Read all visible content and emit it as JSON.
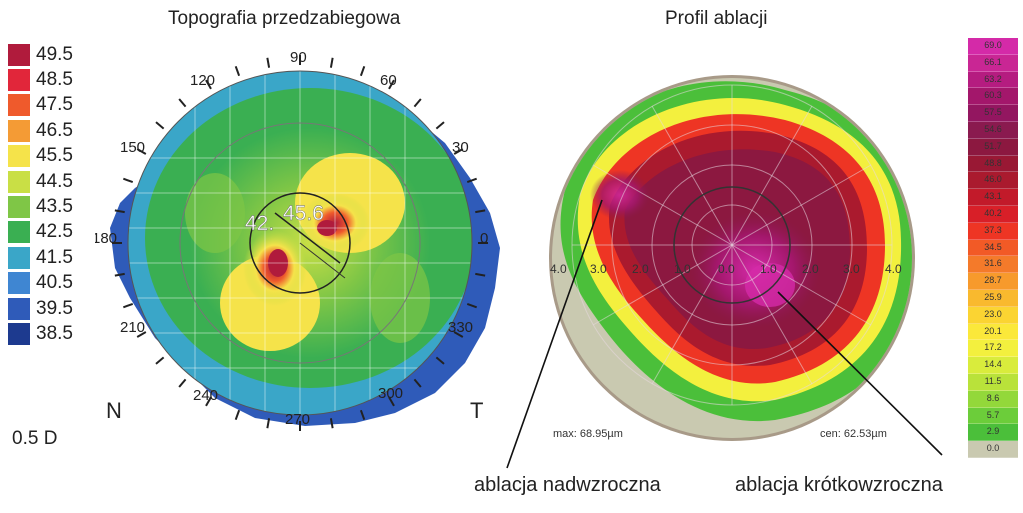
{
  "left": {
    "title": "Topografia przedzabiegowa",
    "scale": [
      {
        "label": "49.5",
        "color": "#b01b3c"
      },
      {
        "label": "48.5",
        "color": "#e1263a"
      },
      {
        "label": "47.5",
        "color": "#ef5a2c"
      },
      {
        "label": "46.5",
        "color": "#f49b35"
      },
      {
        "label": "45.5",
        "color": "#f5e34a"
      },
      {
        "label": "44.5",
        "color": "#c9df45"
      },
      {
        "label": "43.5",
        "color": "#7fc646"
      },
      {
        "label": "42.5",
        "color": "#3aaf52"
      },
      {
        "label": "41.5",
        "color": "#3aa6c8"
      },
      {
        "label": "40.5",
        "color": "#3f86d2"
      },
      {
        "label": "39.5",
        "color": "#2f5bb9"
      },
      {
        "label": "38.5",
        "color": "#1d3a8f"
      }
    ],
    "unit": "0.5 D",
    "nasal": "N",
    "temporal": "T",
    "angles": [
      "90",
      "60",
      "30",
      "0",
      "330",
      "300",
      "270",
      "240",
      "210",
      "180",
      "150",
      "120"
    ],
    "center_readings": [
      "42.",
      "45.6"
    ]
  },
  "right": {
    "title": "Profil ablacji",
    "radial_labels": [
      "4.0",
      "3.0",
      "2.0",
      "1.0",
      "0.0",
      "1.0",
      "2.0",
      "3.0",
      "4.0"
    ],
    "max_label": "max: 68.95µm",
    "cen_label": "cen: 62.53µm",
    "scale": [
      {
        "label": "69.0",
        "color": "#d42aa8"
      },
      {
        "label": "66.1",
        "color": "#c92694"
      },
      {
        "label": "63.2",
        "color": "#b51c80"
      },
      {
        "label": "60.3",
        "color": "#a3176b"
      },
      {
        "label": "57.5",
        "color": "#931660"
      },
      {
        "label": "54.6",
        "color": "#8a1a4f"
      },
      {
        "label": "51.7",
        "color": "#8c1840"
      },
      {
        "label": "48.8",
        "color": "#991834"
      },
      {
        "label": "46.0",
        "color": "#aa1a2e"
      },
      {
        "label": "43.1",
        "color": "#c21a2a"
      },
      {
        "label": "40.2",
        "color": "#d81f28"
      },
      {
        "label": "37.3",
        "color": "#ee3524"
      },
      {
        "label": "34.5",
        "color": "#f25a26"
      },
      {
        "label": "31.6",
        "color": "#f47a2a"
      },
      {
        "label": "28.7",
        "color": "#f79a2c"
      },
      {
        "label": "25.9",
        "color": "#f9b92e"
      },
      {
        "label": "23.0",
        "color": "#fbd432"
      },
      {
        "label": "20.1",
        "color": "#fbe83a"
      },
      {
        "label": "17.2",
        "color": "#f3f03e"
      },
      {
        "label": "14.4",
        "color": "#d9ec3c"
      },
      {
        "label": "11.5",
        "color": "#b9e23a"
      },
      {
        "label": "8.6",
        "color": "#93d83a"
      },
      {
        "label": "5.7",
        "color": "#6ccd3a"
      },
      {
        "label": "2.9",
        "color": "#4bbf3a"
      },
      {
        "label": "0.0",
        "color": "#c9c9b0"
      }
    ]
  },
  "captions": {
    "hyperopic": "ablacja nadwzroczna",
    "myopic": "ablacja krótkowzroczna"
  }
}
